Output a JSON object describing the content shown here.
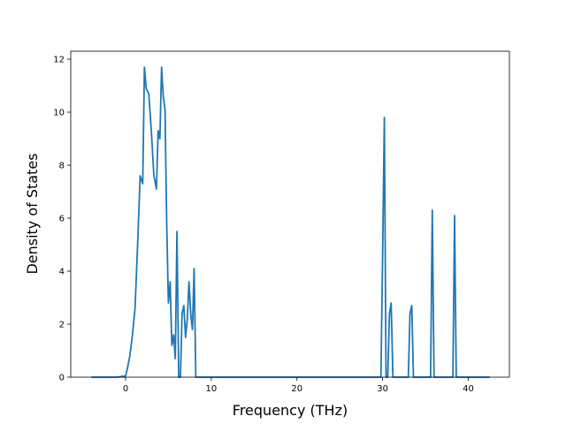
{
  "chart_data": {
    "type": "line",
    "title": "",
    "xlabel": "Frequency (THz)",
    "ylabel": "Density of States",
    "xlim": [
      -6.4,
      44.8
    ],
    "ylim": [
      0,
      12.3
    ],
    "xticks": [
      0,
      10,
      20,
      30,
      40
    ],
    "yticks": [
      0,
      2,
      4,
      6,
      8,
      10,
      12
    ],
    "grid": false,
    "legend": "none",
    "series": [
      {
        "color": "#1f77b4",
        "x": [
          -4.0,
          -1.0,
          0.0,
          0.2,
          0.5,
          0.8,
          1.1,
          1.4,
          1.7,
          2.0,
          2.2,
          2.4,
          2.7,
          3.0,
          3.3,
          3.6,
          3.8,
          4.0,
          4.2,
          4.4,
          4.6,
          4.8,
          5.0,
          5.2,
          5.4,
          5.6,
          5.8,
          6.0,
          6.2,
          6.4,
          6.6,
          6.8,
          7.0,
          7.2,
          7.4,
          7.6,
          7.8,
          8.0,
          8.2,
          8.4,
          8.6,
          8.8,
          9.0,
          12.0,
          20.0,
          29.8,
          30.0,
          30.2,
          30.4,
          30.6,
          30.8,
          31.0,
          31.2,
          31.4,
          33.0,
          33.2,
          33.4,
          33.6,
          35.6,
          35.8,
          36.0,
          36.2,
          38.2,
          38.4,
          38.6,
          38.8,
          42.5
        ],
        "y": [
          0,
          0,
          0.05,
          0.3,
          0.8,
          1.6,
          2.6,
          5.0,
          7.6,
          7.3,
          11.7,
          10.9,
          10.7,
          9.3,
          7.6,
          7.1,
          9.3,
          9.0,
          11.7,
          10.6,
          10.1,
          5.8,
          2.8,
          3.6,
          1.2,
          1.6,
          0.7,
          5.5,
          0,
          0,
          2.4,
          2.7,
          1.5,
          2.2,
          3.6,
          2.4,
          1.8,
          4.1,
          0,
          0,
          0,
          0,
          0,
          0,
          0,
          0,
          4.5,
          9.8,
          0,
          0,
          2.4,
          2.8,
          0,
          0,
          0,
          2.4,
          2.7,
          0,
          0,
          6.3,
          0,
          0,
          0,
          6.1,
          0,
          0,
          0
        ]
      }
    ]
  }
}
